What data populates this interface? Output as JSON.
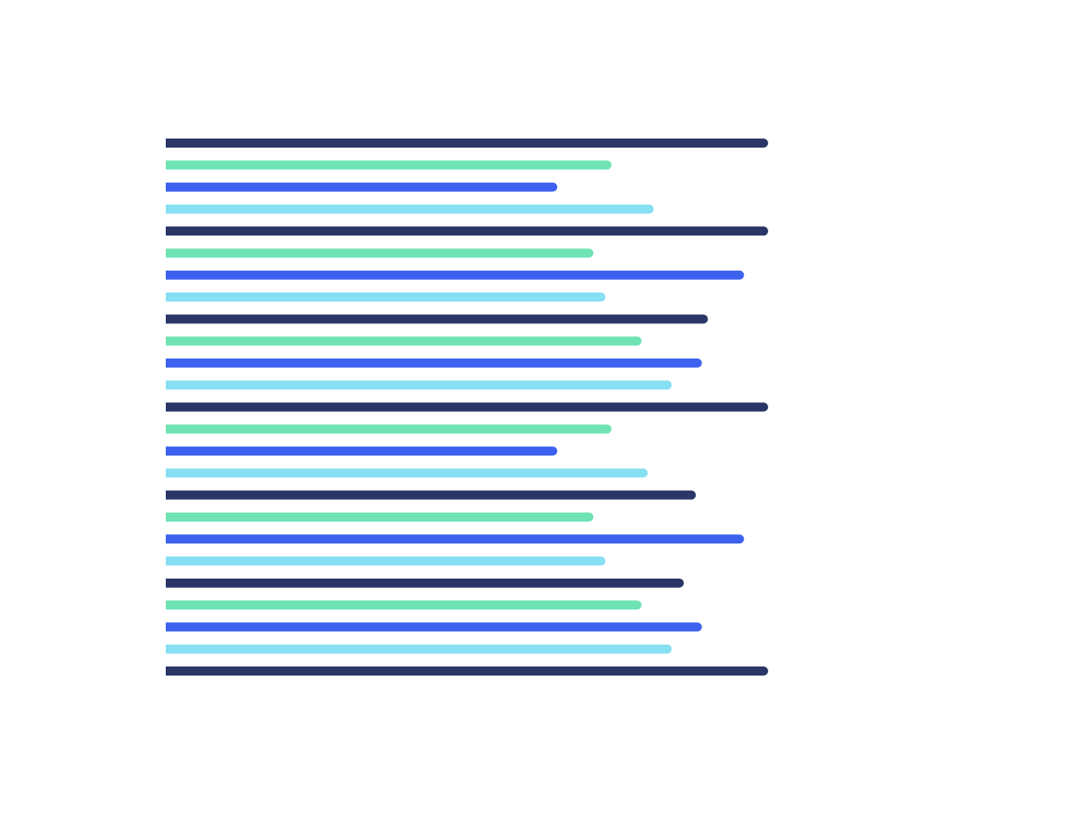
{
  "chart_data": {
    "type": "bar",
    "orientation": "horizontal",
    "colors": [
      "#2b3566",
      "#6fe3b4",
      "#3d62f0",
      "#86dff2"
    ],
    "values": [
      100,
      74,
      65,
      81,
      100,
      71,
      96,
      73,
      90,
      79,
      89,
      84,
      100,
      74,
      65,
      80,
      88,
      71,
      96,
      73,
      86,
      79,
      89,
      84,
      100
    ]
  }
}
